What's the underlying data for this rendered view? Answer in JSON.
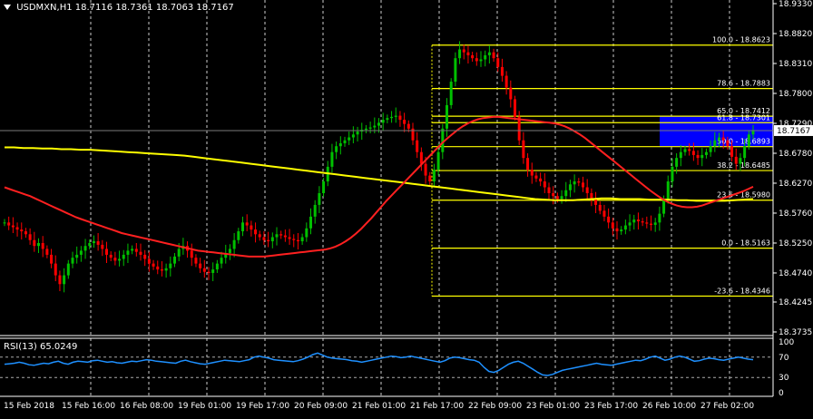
{
  "header": {
    "symbol": "USDMXN,H1",
    "open": "18.7116",
    "high": "18.7361",
    "low": "18.7063",
    "close": "18.7167"
  },
  "rsi_label": "RSI(13) 65.0249",
  "price_marker": "18.7167",
  "colors": {
    "background": "#000000",
    "bull_candle": "#00c000",
    "bear_candle": "#ff0000",
    "ma_fast": "#ff2020",
    "ma_slow": "#ffff00",
    "fib": "#ffff00",
    "rsi": "#1e90ff",
    "zone": "#0000ff",
    "grid": "#ffffff"
  },
  "chart_data": [
    {
      "type": "candlestick",
      "y_ticks": [
        "18.9330",
        "18.8820",
        "18.8310",
        "18.7800",
        "18.7290",
        "18.6780",
        "18.6270",
        "18.5760",
        "18.5250",
        "18.4740",
        "18.4245",
        "18.3735"
      ],
      "x_ticks": [
        "15 Feb 2018",
        "15 Feb 16:00",
        "16 Feb 08:00",
        "19 Feb 01:00",
        "19 Feb 17:00",
        "20 Feb 09:00",
        "21 Feb 01:00",
        "21 Feb 17:00",
        "22 Feb 09:00",
        "23 Feb 01:00",
        "23 Feb 17:00",
        "26 Feb 10:00",
        "27 Feb 02:00"
      ],
      "ylim": [
        18.3735,
        18.933
      ],
      "grid": true,
      "fibonacci": [
        {
          "label": "100.0 - 18.8623",
          "level": 18.8623
        },
        {
          "label": "78.6 - 18.7883",
          "level": 18.7883
        },
        {
          "label": "65.0 - 18.7412",
          "level": 18.7412
        },
        {
          "label": "61.8 - 18.7301",
          "level": 18.7301
        },
        {
          "label": "50.0 - 18.6893",
          "level": 18.6893
        },
        {
          "label": "38.2 - 18.6485",
          "level": 18.6485
        },
        {
          "label": "23.6 - 18.5980",
          "level": 18.598
        },
        {
          "label": "0.0 - 18.5163",
          "level": 18.5163
        },
        {
          "label": "-23.6 - 18.4346",
          "level": 18.4346
        }
      ],
      "zone": {
        "top": 18.7412,
        "bottom": 18.6893
      },
      "current_price": 18.7167,
      "series_close": [
        18.56,
        18.555,
        18.552,
        18.548,
        18.545,
        18.54,
        18.53,
        18.52,
        18.525,
        18.515,
        18.505,
        18.49,
        18.47,
        18.455,
        18.47,
        18.49,
        18.5,
        18.505,
        18.512,
        18.52,
        18.525,
        18.528,
        18.522,
        18.515,
        18.505,
        18.5,
        18.495,
        18.498,
        18.505,
        18.512,
        18.515,
        18.51,
        18.505,
        18.498,
        18.49,
        18.485,
        18.48,
        18.478,
        18.482,
        18.49,
        18.502,
        18.515,
        18.52,
        18.512,
        18.5,
        18.49,
        18.482,
        18.476,
        18.474,
        18.48,
        18.49,
        18.5,
        18.508,
        18.515,
        18.53,
        18.545,
        18.56,
        18.555,
        18.548,
        18.54,
        18.535,
        18.53,
        18.528,
        18.535,
        18.54,
        18.538,
        18.535,
        18.532,
        18.53,
        18.528,
        18.535,
        18.55,
        18.57,
        18.59,
        18.61,
        18.63,
        18.655,
        18.68,
        18.69,
        18.695,
        18.7,
        18.705,
        18.71,
        18.715,
        18.718,
        18.72,
        18.722,
        18.725,
        18.73,
        18.735,
        18.738,
        18.74,
        18.742,
        18.735,
        18.728,
        18.72,
        18.7,
        18.68,
        18.66,
        18.64,
        18.63,
        18.65,
        18.68,
        18.72,
        18.76,
        18.8,
        18.84,
        18.855,
        18.85,
        18.845,
        18.84,
        18.835,
        18.838,
        18.845,
        18.85,
        18.84,
        18.825,
        18.81,
        18.79,
        18.77,
        18.74,
        18.7,
        18.67,
        18.65,
        18.64,
        18.635,
        18.63,
        18.62,
        18.61,
        18.605,
        18.6,
        18.605,
        18.615,
        18.625,
        18.63,
        18.628,
        18.62,
        18.61,
        18.6,
        18.59,
        18.58,
        18.57,
        18.56,
        18.55,
        18.545,
        18.548,
        18.555,
        18.56,
        18.565,
        18.562,
        18.56,
        18.558,
        18.556,
        18.56,
        18.575,
        18.6,
        18.63,
        18.655,
        18.67,
        18.68,
        18.685,
        18.682,
        18.675,
        18.67,
        18.675,
        18.68,
        18.69,
        18.7,
        18.705,
        18.7,
        18.69,
        18.672,
        18.66,
        18.67,
        18.69,
        18.71,
        18.716
      ],
      "ma_fast": [
        18.62,
        18.617,
        18.614,
        18.611,
        18.608,
        18.605,
        18.601,
        18.597,
        18.593,
        18.589,
        18.585,
        18.581,
        18.577,
        18.573,
        18.569,
        18.566,
        18.563,
        18.56,
        18.557,
        18.554,
        18.551,
        18.548,
        18.545,
        18.542,
        18.54,
        18.538,
        18.536,
        18.534,
        18.532,
        18.53,
        18.528,
        18.526,
        18.524,
        18.522,
        18.52,
        18.518,
        18.516,
        18.514,
        18.512,
        18.511,
        18.51,
        18.509,
        18.508,
        18.507,
        18.506,
        18.505,
        18.504,
        18.503,
        18.502,
        18.502,
        18.502,
        18.502,
        18.503,
        18.504,
        18.505,
        18.506,
        18.507,
        18.508,
        18.509,
        18.51,
        18.511,
        18.512,
        18.513,
        18.514,
        18.516,
        18.519,
        18.523,
        18.528,
        18.534,
        18.541,
        18.549,
        18.558,
        18.567,
        18.577,
        18.587,
        18.597,
        18.606,
        18.615,
        18.624,
        18.633,
        18.642,
        18.651,
        18.66,
        18.669,
        18.678,
        18.687,
        18.696,
        18.704,
        18.711,
        18.718,
        18.724,
        18.729,
        18.733,
        18.736,
        18.738,
        18.739,
        18.74,
        18.74,
        18.739,
        18.738,
        18.737,
        18.736,
        18.735,
        18.734,
        18.733,
        18.732,
        18.731,
        18.73,
        18.729,
        18.727,
        18.724,
        18.72,
        18.715,
        18.71,
        18.704,
        18.697,
        18.69,
        18.683,
        18.676,
        18.669,
        18.662,
        18.655,
        18.648,
        18.641,
        18.634,
        18.627,
        18.62,
        18.613,
        18.607,
        18.601,
        18.596,
        18.592,
        18.589,
        18.587,
        18.586,
        18.586,
        18.587,
        18.589,
        18.592,
        18.595,
        18.598,
        18.601,
        18.604,
        18.607,
        18.61,
        18.613,
        18.617,
        18.621
      ],
      "ma_slow": [
        18.688,
        18.688,
        18.687,
        18.687,
        18.686,
        18.686,
        18.685,
        18.685,
        18.684,
        18.684,
        18.683,
        18.682,
        18.681,
        18.68,
        18.679,
        18.678,
        18.677,
        18.676,
        18.675,
        18.674,
        18.672,
        18.67,
        18.668,
        18.666,
        18.664,
        18.662,
        18.66,
        18.658,
        18.656,
        18.654,
        18.652,
        18.65,
        18.648,
        18.646,
        18.644,
        18.642,
        18.64,
        18.638,
        18.636,
        18.634,
        18.632,
        18.63,
        18.628,
        18.626,
        18.624,
        18.622,
        18.62,
        18.618,
        18.616,
        18.614,
        18.612,
        18.61,
        18.608,
        18.606,
        18.604,
        18.602,
        18.6,
        18.599,
        18.598,
        18.598,
        18.598,
        18.599,
        18.6,
        18.601,
        18.601,
        18.6,
        18.6,
        18.6,
        18.599,
        18.599,
        18.599,
        18.598,
        18.598,
        18.597,
        18.597,
        18.597,
        18.597,
        18.598,
        18.599,
        18.6
      ],
      "rsi": {
        "label": "RSI(13) 65.0249",
        "levels": [
          "100",
          "70",
          "30",
          "0"
        ],
        "values": [
          56,
          57,
          58,
          60,
          58,
          55,
          54,
          56,
          58,
          57,
          60,
          62,
          58,
          56,
          60,
          62,
          61,
          60,
          63,
          64,
          62,
          60,
          61,
          59,
          58,
          60,
          62,
          61,
          63,
          65,
          64,
          62,
          61,
          60,
          59,
          58,
          62,
          64,
          61,
          59,
          57,
          56,
          58,
          60,
          62,
          64,
          63,
          62,
          61,
          63,
          65,
          70,
          72,
          70,
          68,
          65,
          64,
          63,
          62,
          61,
          63,
          66,
          70,
          75,
          78,
          74,
          70,
          68,
          67,
          66,
          65,
          63,
          62,
          60,
          62,
          64,
          66,
          68,
          70,
          72,
          71,
          69,
          70,
          72,
          70,
          68,
          66,
          64,
          62,
          60,
          63,
          68,
          70,
          69,
          67,
          65,
          64,
          60,
          50,
          42,
          40,
          44,
          50,
          56,
          60,
          62,
          58,
          52,
          46,
          40,
          35,
          34,
          36,
          40,
          44,
          46,
          48,
          50,
          52,
          54,
          56,
          58,
          56,
          55,
          54,
          56,
          58,
          60,
          62,
          64,
          63,
          66,
          70,
          72,
          68,
          64,
          66,
          70,
          72,
          70,
          66,
          62,
          63,
          66,
          68,
          67,
          65,
          64,
          66,
          68,
          70,
          68,
          66,
          65
        ]
      }
    }
  ]
}
